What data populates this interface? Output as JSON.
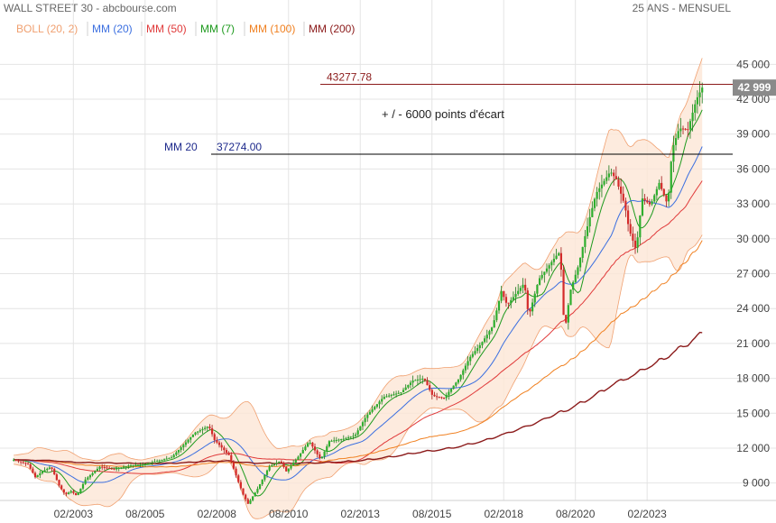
{
  "header": {
    "title": "WALL STREET 30 - abcbourse.com",
    "period": "25 ANS - MENSUEL"
  },
  "legend": [
    {
      "label": "BOLL (20, 2)",
      "color": "#f0a070"
    },
    {
      "label": "MM (20)",
      "color": "#3b6fe0"
    },
    {
      "label": "MM (50)",
      "color": "#e03a3a"
    },
    {
      "label": "MM (7)",
      "color": "#1e9a1e"
    },
    {
      "label": "MM (100)",
      "color": "#f08020"
    },
    {
      "label": "MM (200)",
      "color": "#8b1a1a"
    }
  ],
  "annotations": {
    "level_high": {
      "value": 43277.78,
      "label": "43277.78",
      "color": "#8b1a1a"
    },
    "level_mm20": {
      "value": 37274.0,
      "prefix": "MM 20",
      "label": "37274.00",
      "color": "#000000",
      "text_color": "#1e2a8c"
    },
    "note": "+ / - 6000 points d'écart"
  },
  "last_price": {
    "label": "42 999",
    "value": 42999,
    "bg": "#8a8a8a"
  },
  "chart_data": {
    "type": "candlestick",
    "frequency": "monthly",
    "ylim": [
      7500,
      46500
    ],
    "y_ticks": [
      {
        "value": 45000,
        "label": "45 000"
      },
      {
        "value": 42000,
        "label": "42 000"
      },
      {
        "value": 39000,
        "label": "39 000"
      },
      {
        "value": 36000,
        "label": "36 000"
      },
      {
        "value": 33000,
        "label": "33 000"
      },
      {
        "value": 30000,
        "label": "30 000"
      },
      {
        "value": 27000,
        "label": "27 000"
      },
      {
        "value": 24000,
        "label": "24 000"
      },
      {
        "value": 21000,
        "label": "21 000"
      },
      {
        "value": 18000,
        "label": "18 000"
      },
      {
        "value": 15000,
        "label": "15 000"
      },
      {
        "value": 12000,
        "label": "12 000"
      },
      {
        "value": 9000,
        "label": "9 000"
      }
    ],
    "x_ticks": [
      {
        "year": 2003.08,
        "label": "02/2003"
      },
      {
        "year": 2005.58,
        "label": "08/2005"
      },
      {
        "year": 2008.08,
        "label": "02/2008"
      },
      {
        "year": 2010.58,
        "label": "08/2010"
      },
      {
        "year": 2013.08,
        "label": "02/2013"
      },
      {
        "year": 2015.58,
        "label": "08/2015"
      },
      {
        "year": 2018.08,
        "label": "02/2018"
      },
      {
        "year": 2020.58,
        "label": "08/2020"
      },
      {
        "year": 2023.08,
        "label": "02/2023"
      }
    ],
    "xlim": [
      2000.9,
      2026.0
    ],
    "close_path": [
      [
        2001.0,
        11000
      ],
      [
        2001.5,
        10600
      ],
      [
        2001.75,
        9500
      ],
      [
        2002.0,
        10000
      ],
      [
        2002.3,
        10400
      ],
      [
        2002.6,
        8700
      ],
      [
        2002.8,
        8000
      ],
      [
        2003.0,
        8300
      ],
      [
        2003.2,
        7900
      ],
      [
        2003.5,
        9300
      ],
      [
        2004.0,
        10400
      ],
      [
        2004.5,
        10200
      ],
      [
        2005.0,
        10500
      ],
      [
        2005.5,
        10600
      ],
      [
        2006.0,
        10900
      ],
      [
        2006.5,
        11200
      ],
      [
        2007.0,
        12500
      ],
      [
        2007.3,
        13300
      ],
      [
        2007.8,
        13900
      ],
      [
        2008.0,
        12700
      ],
      [
        2008.5,
        11400
      ],
      [
        2008.8,
        9300
      ],
      [
        2009.0,
        8000
      ],
      [
        2009.17,
        7200
      ],
      [
        2009.5,
        8500
      ],
      [
        2009.9,
        10400
      ],
      [
        2010.3,
        10900
      ],
      [
        2010.5,
        10000
      ],
      [
        2010.9,
        11200
      ],
      [
        2011.3,
        12600
      ],
      [
        2011.7,
        11000
      ],
      [
        2012.0,
        12600
      ],
      [
        2012.5,
        12800
      ],
      [
        2012.9,
        13100
      ],
      [
        2013.3,
        14800
      ],
      [
        2013.9,
        16400
      ],
      [
        2014.5,
        16800
      ],
      [
        2014.9,
        17800
      ],
      [
        2015.3,
        18000
      ],
      [
        2015.6,
        16500
      ],
      [
        2016.0,
        16300
      ],
      [
        2016.5,
        17900
      ],
      [
        2016.9,
        19800
      ],
      [
        2017.3,
        21000
      ],
      [
        2017.7,
        22500
      ],
      [
        2018.0,
        25500
      ],
      [
        2018.2,
        24300
      ],
      [
        2018.8,
        26200
      ],
      [
        2018.95,
        23300
      ],
      [
        2019.3,
        26500
      ],
      [
        2019.9,
        28500
      ],
      [
        2020.05,
        28900
      ],
      [
        2020.2,
        21900
      ],
      [
        2020.4,
        25500
      ],
      [
        2020.7,
        27800
      ],
      [
        2020.95,
        30600
      ],
      [
        2021.3,
        33900
      ],
      [
        2021.8,
        35800
      ],
      [
        2022.0,
        35100
      ],
      [
        2022.3,
        32900
      ],
      [
        2022.45,
        30800
      ],
      [
        2022.7,
        29000
      ],
      [
        2022.9,
        33500
      ],
      [
        2023.2,
        32900
      ],
      [
        2023.5,
        34800
      ],
      [
        2023.8,
        32900
      ],
      [
        2023.95,
        37700
      ],
      [
        2024.2,
        39500
      ],
      [
        2024.5,
        39400
      ],
      [
        2024.8,
        42000
      ],
      [
        2025.0,
        43000
      ]
    ],
    "overlays": [
      {
        "name": "MM (7)",
        "color": "#1e9a1e",
        "lag": 0.3
      },
      {
        "name": "MM (20)",
        "color": "#3b6fe0",
        "lag": 0.85
      },
      {
        "name": "MM (50)",
        "color": "#e03a3a",
        "lag": 2.1
      },
      {
        "name": "MM (100)",
        "color": "#f08020",
        "lag": 4.2
      },
      {
        "name": "MM (200)",
        "color": "#8b1a1a",
        "lag": 8.3
      }
    ],
    "bollinger": {
      "name": "BOLL (20, 2)",
      "color": "#f0a070",
      "fill": "#fde6d6"
    }
  }
}
